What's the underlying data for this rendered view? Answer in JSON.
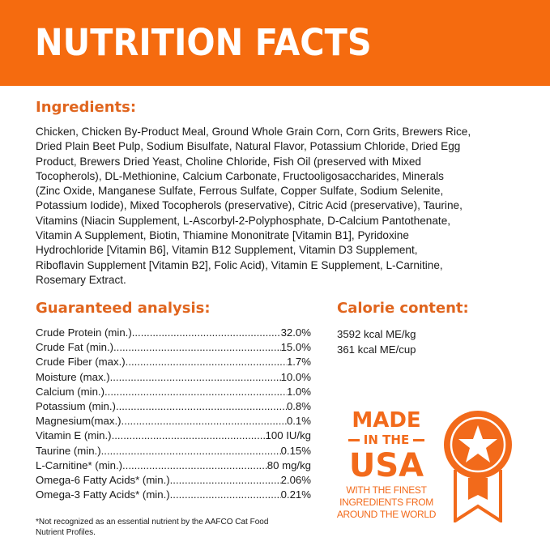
{
  "header": {
    "title": "NUTRITION FACTS"
  },
  "colors": {
    "brand_orange": "#F56B0F",
    "heading_orange": "#E0651E"
  },
  "ingredients": {
    "heading": "Ingredients:",
    "lines": [
      "Chicken, Chicken By-Product Meal, Ground Whole Grain Corn, Corn Grits, Brewers Rice,",
      "Dried Plain Beet Pulp, Sodium Bisulfate, Natural Flavor, Potassium Chloride, Dried Egg",
      "Product, Brewers Dried Yeast, Choline Chloride, Fish Oil (preserved with Mixed",
      "Tocopherols), DL-Methionine, Calcium Carbonate, Fructooligosaccharides, Minerals",
      "(Zinc Oxide, Manganese Sulfate, Ferrous Sulfate, Copper Sulfate, Sodium Selenite,",
      "Potassium Iodide), Mixed Tocopherols (preservative), Citric Acid (preservative), Taurine,",
      "Vitamins (Niacin Supplement, L-Ascorbyl-2-Polyphosphate, D-Calcium Pantothenate,",
      "Vitamin A Supplement, Biotin, Thiamine Mononitrate [Vitamin B1], Pyridoxine",
      "Hydrochloride [Vitamin B6], Vitamin B12 Supplement, Vitamin D3 Supplement,",
      "Riboflavin Supplement [Vitamin B2], Folic Acid), Vitamin E Supplement, L-Carnitine,",
      "Rosemary Extract."
    ]
  },
  "analysis": {
    "heading": "Guaranteed analysis:",
    "rows": [
      {
        "label": "Crude Protein (min.)",
        "value": "32.0%"
      },
      {
        "label": "Crude Fat (min.)",
        "value": "15.0%"
      },
      {
        "label": "Crude Fiber (max.)",
        "value": "1.7%"
      },
      {
        "label": "Moisture (max.)",
        "value": "10.0%"
      },
      {
        "label": "Calcium (min.)",
        "value": "1.0%"
      },
      {
        "label": "Potassium (min.)",
        "value": "0.8%"
      },
      {
        "label": "Magnesium(max.)",
        "value": "0.1%"
      },
      {
        "label": "Vitamin E (min.)",
        "value": "100 IU/kg"
      },
      {
        "label": "Taurine (min.)",
        "value": "0.15%"
      },
      {
        "label": "L-Carnitine* (min.)",
        "value": "80 mg/kg"
      },
      {
        "label": "Omega-6 Fatty Acids* (min.)",
        "value": "2.06%"
      },
      {
        "label": "Omega-3 Fatty Acids* (min.)",
        "value": "0.21%"
      }
    ]
  },
  "calorie": {
    "heading": "Calorie content:",
    "lines": [
      "3592 kcal ME/kg",
      "361 kcal ME/cup"
    ]
  },
  "footnote": "*Not recognized as an essential nutrient by the AAFCO Cat Food Nutrient Profiles.",
  "badge": {
    "made": "MADE",
    "in_the": "IN THE",
    "usa": "USA",
    "lines": [
      "WITH THE FINEST",
      "INGREDIENTS FROM",
      "AROUND THE WORLD"
    ],
    "icon": "star-medal-icon"
  }
}
